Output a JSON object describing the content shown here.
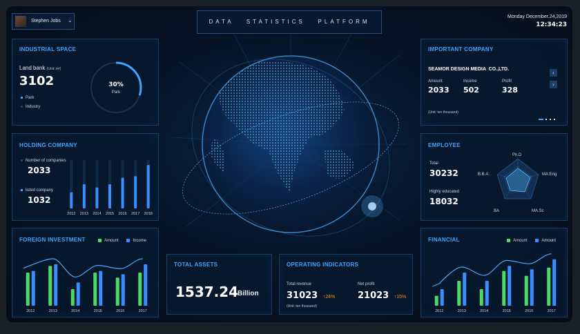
{
  "header": {
    "user_name": "Stephen Jobs",
    "title": "DATA   STATISTICS   PLATFORM",
    "date": "Monday December.24,2019",
    "time": "12:34:23"
  },
  "industrial_space": {
    "title": "INDUSTRIAL SPACE",
    "land_bank_label": "Land bank",
    "unit": "(Unit: m²)",
    "value": "3102",
    "legend": [
      "Park",
      "Industry"
    ],
    "ring_percent": "30%",
    "ring_label": "Park",
    "ring_fraction": 0.3
  },
  "holding_company": {
    "title": "HOLDING COMPANY",
    "num_label": "Number of companies",
    "num_value": "2033",
    "listed_label": "listed company",
    "listed_value": "1032"
  },
  "foreign_investment": {
    "title": "FOREIGN INVESTMENT",
    "legend": [
      "Amount",
      "Income"
    ]
  },
  "total_assets": {
    "title": "TOTAL ASSETS",
    "value": "1537.24",
    "unit": "Billion"
  },
  "operating": {
    "title": "OPERATING INDICATORS",
    "revenue_label": "Total revenue",
    "revenue_value": "31023",
    "revenue_change": "↑24%",
    "profit_label": "Net profit",
    "profit_value": "21023",
    "profit_change": "↑15%",
    "unit": "(Unit: ten thousand)"
  },
  "important_company": {
    "title": "IMPORTANT COMPANY",
    "company": "SEAMOR DESIGN MEDIA  CO.,LTD.",
    "amount_label": "Amount",
    "amount_value": "2033",
    "income_label": "Income",
    "income_value": "502",
    "profit_label": "Profit",
    "profit_value": "328",
    "unit": "(Unit: ten thousand)"
  },
  "employee": {
    "title": "EMPLOYEE",
    "total_label": "Total",
    "total_value": "30232",
    "educated_label": "Highly educated",
    "educated_value": "18032",
    "radar_labels": [
      "Ph.D",
      "MA.Eng",
      "MA.Sc",
      "BA",
      "B.B.A."
    ]
  },
  "financial": {
    "title": "FINANCIAL",
    "legend": [
      "Amount",
      "Amount"
    ]
  },
  "colors": {
    "accent": "#3ea6ff",
    "green": "#4cd964",
    "blue": "#3a8dff",
    "orange": "#ff8a2b"
  },
  "chart_data": [
    {
      "type": "bar",
      "name_ref": "holding_company",
      "categories": [
        "2012",
        "2013",
        "2014",
        "2015",
        "2016",
        "2017",
        "2018"
      ],
      "series": [
        {
          "values": [
            20,
            30,
            26,
            30,
            38,
            40,
            54
          ]
        }
      ],
      "ylim": [
        0,
        60
      ]
    },
    {
      "type": "bar",
      "name_ref": "foreign_investment",
      "categories": [
        "2012",
        "2013",
        "2014",
        "2015",
        "2016",
        "2017"
      ],
      "series": [
        {
          "name": "Amount",
          "values": [
            40,
            48,
            20,
            40,
            34,
            40
          ]
        },
        {
          "name": "Income",
          "values": [
            42,
            50,
            28,
            42,
            38,
            50
          ]
        }
      ],
      "ylim": [
        0,
        60
      ]
    },
    {
      "type": "bar",
      "name_ref": "financial",
      "categories": [
        "2012",
        "2013",
        "2014",
        "2015",
        "2016",
        "2017"
      ],
      "series": [
        {
          "name": "Amount",
          "values": [
            12,
            30,
            20,
            42,
            36,
            46
          ]
        },
        {
          "name": "Amount",
          "values": [
            20,
            40,
            30,
            48,
            44,
            56
          ]
        }
      ],
      "ylim": [
        0,
        60
      ]
    }
  ]
}
